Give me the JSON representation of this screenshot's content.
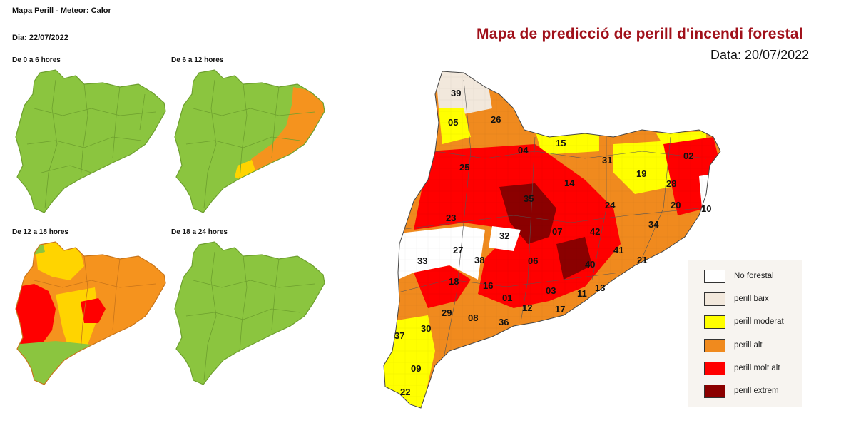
{
  "left": {
    "title": "Mapa Perill - Meteor: Calor",
    "date": "Dia: 22/07/2022",
    "panels": [
      {
        "label": "De 0 a 6 hores"
      },
      {
        "label": "De 6 a 12 hores"
      },
      {
        "label": "De 12 a 18 hores"
      },
      {
        "label": "De 18 a 24 hores"
      }
    ]
  },
  "right": {
    "title": "Mapa de predicció de perill d'incendi forestal",
    "date": "Data: 20/07/2022",
    "region_numbers": [
      "39",
      "26",
      "05",
      "04",
      "15",
      "25",
      "31",
      "02",
      "19",
      "14",
      "28",
      "35",
      "24",
      "20",
      "10",
      "23",
      "34",
      "32",
      "07",
      "42",
      "27",
      "33",
      "38",
      "41",
      "06",
      "21",
      "40",
      "18",
      "16",
      "13",
      "01",
      "03",
      "11",
      "12",
      "17",
      "29",
      "08",
      "36",
      "37",
      "30",
      "09",
      "22"
    ]
  },
  "legend": {
    "items": [
      {
        "label": "No forestal",
        "color": "#ffffff"
      },
      {
        "label": "perill baix",
        "color": "#f2e8dc"
      },
      {
        "label": "perill moderat",
        "color": "#ffff00"
      },
      {
        "label": "perill alt",
        "color": "#f08a1e"
      },
      {
        "label": "perill molt alt",
        "color": "#ff0000"
      },
      {
        "label": "perill extrem",
        "color": "#8b0000"
      }
    ]
  },
  "colors": {
    "green": "#8bc53f",
    "orange": "#f5931e",
    "yellow": "#ffd400",
    "red": "#ff0000",
    "title_red": "#a0101a"
  }
}
